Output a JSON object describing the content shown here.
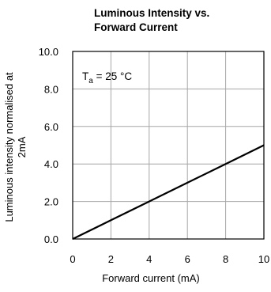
{
  "chart_data": {
    "type": "line",
    "title_lines": [
      "Luminous Intensity vs.",
      "Forward Current"
    ],
    "xlabel": "Forward current (mA)",
    "ylabel_lines": [
      "Luminous intensity normalised at",
      "2mA"
    ],
    "annotation": {
      "main": "T",
      "subscript": "a",
      "rest": " = 25 °C"
    },
    "xlim": [
      0,
      10
    ],
    "ylim": [
      0,
      10
    ],
    "x_ticks": [
      0,
      2,
      4,
      6,
      8,
      10
    ],
    "x_tick_labels": [
      "0",
      "2",
      "4",
      "6",
      "8",
      "10"
    ],
    "y_ticks": [
      0,
      2,
      4,
      6,
      8,
      10
    ],
    "y_tick_labels": [
      "0.0",
      "2.0",
      "4.0",
      "6.0",
      "8.0",
      "10.0"
    ],
    "grid": true,
    "series": [
      {
        "x": [
          0,
          2,
          4,
          6,
          8,
          10
        ],
        "y": [
          0,
          1.0,
          2.0,
          3.0,
          4.0,
          5.0
        ],
        "color": "#000000"
      }
    ],
    "colors": {
      "grid": "#a6a6a6",
      "frame": "#000000",
      "line": "#000000"
    }
  }
}
